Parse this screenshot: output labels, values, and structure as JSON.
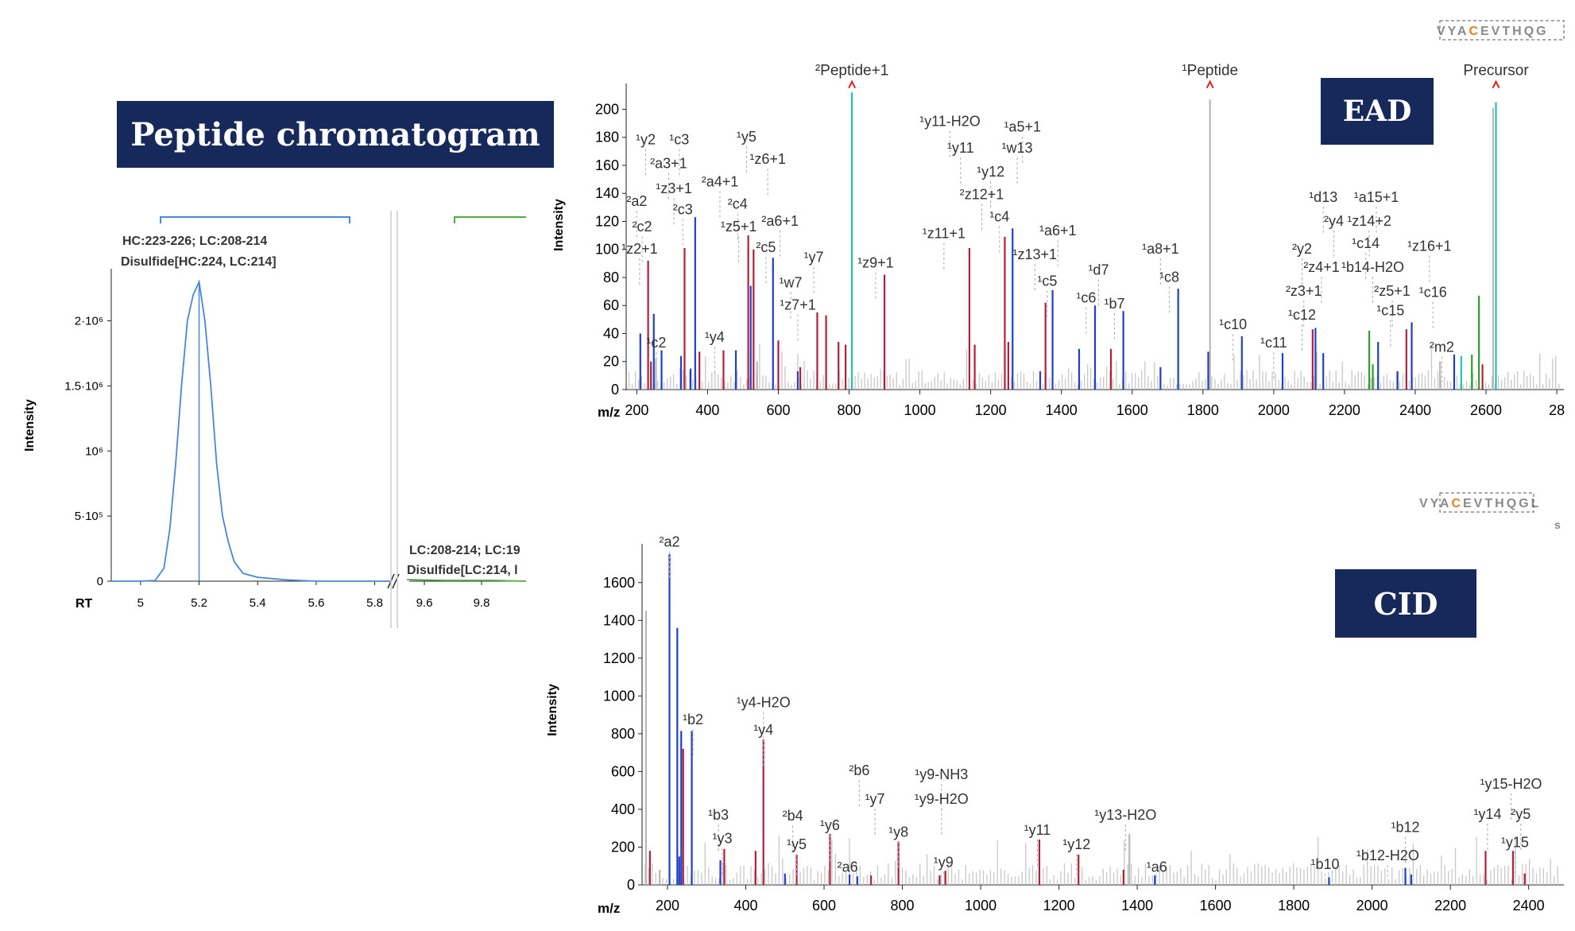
{
  "chromatogram": {
    "header": "Peptide chromatogram",
    "ylabel": "Intensity",
    "xlabel": "RT",
    "yticks": [
      "0",
      "5·10⁵",
      "10⁶",
      "1.5·10⁶",
      "2·10⁶"
    ],
    "xticks_left": [
      "5",
      "5.2",
      "5.4",
      "5.6",
      "5.8"
    ],
    "xticks_right": [
      "9.6",
      "9.8"
    ],
    "peak1_label_line1": "HC:223-226; LC:208-214",
    "peak1_label_line2": "Disulfide[HC:224, LC:214]",
    "peak2_label_line1": "LC:208-214; LC:19",
    "peak2_label_line2": "Disulfide[LC:214, l",
    "line_color": "#4a86d8",
    "line2_color": "#4caf3c"
  },
  "ead": {
    "badge": "EAD",
    "sequence": "VYACEVTHQG",
    "precursor_label": "Precursor",
    "ylabel": "Intensity",
    "xlabel": "m/z",
    "yticks": [
      "0",
      "20",
      "40",
      "60",
      "80",
      "100",
      "120",
      "140",
      "160",
      "180",
      "200"
    ],
    "xticks": [
      "200",
      "400",
      "600",
      "800",
      "1000",
      "1200",
      "1400",
      "1600",
      "1800",
      "2000",
      "2200",
      "2400",
      "2600",
      "28"
    ]
  },
  "cid": {
    "badge": "CID",
    "sequence": "VYACEVTHQGL",
    "ylabel": "Intensity",
    "xlabel": "m/z",
    "yticks": [
      "0",
      "200",
      "400",
      "600",
      "800",
      "1000",
      "1200",
      "1400",
      "1600"
    ],
    "xticks": [
      "200",
      "400",
      "600",
      "800",
      "1000",
      "1200",
      "1400",
      "1600",
      "1800",
      "2000",
      "2200",
      "2400"
    ]
  },
  "colors": {
    "header_bg": "#17285a",
    "red_ion": "#b0203a",
    "blue_ion": "#1f3fc8",
    "grey_peak": "#b8b8b8",
    "teal_peak": "#27c0b8",
    "green_peak": "#2f9e2f",
    "highlight_C": "#e67e22"
  },
  "chart_data": [
    {
      "type": "line",
      "name": "Peptide chromatogram",
      "xlabel": "RT",
      "ylabel": "Intensity",
      "x": [
        4.9,
        5.0,
        5.05,
        5.08,
        5.1,
        5.12,
        5.14,
        5.16,
        5.18,
        5.2,
        5.22,
        5.24,
        5.26,
        5.28,
        5.3,
        5.32,
        5.35,
        5.4,
        5.5,
        5.6,
        5.85
      ],
      "y": [
        0,
        0,
        5000,
        100000,
        400000,
        900000,
        1500000,
        2000000,
        2200000,
        2300000,
        2000000,
        1500000,
        900000,
        500000,
        300000,
        150000,
        60000,
        30000,
        10000,
        0,
        0
      ],
      "ylim": [
        0,
        2400000
      ],
      "peak_rt": 5.2
    },
    {
      "type": "bar",
      "name": "EAD spectrum",
      "xlabel": "m/z",
      "ylabel": "Intensity",
      "xlim": [
        170,
        2820
      ],
      "ylim": [
        0,
        215
      ],
      "peaks": [
        {
          "mz": 210,
          "i": 40,
          "c": "blue"
        },
        {
          "mz": 232,
          "i": 92,
          "c": "red"
        },
        {
          "mz": 240,
          "i": 20,
          "c": "red"
        },
        {
          "mz": 248,
          "i": 54,
          "c": "blue"
        },
        {
          "mz": 254,
          "i": 22,
          "c": "grey"
        },
        {
          "mz": 270,
          "i": 28,
          "c": "blue"
        },
        {
          "mz": 325,
          "i": 24,
          "c": "blue"
        },
        {
          "mz": 335,
          "i": 101,
          "c": "red"
        },
        {
          "mz": 352,
          "i": 15,
          "c": "blue"
        },
        {
          "mz": 365,
          "i": 123,
          "c": "blue"
        },
        {
          "mz": 377,
          "i": 27,
          "c": "red"
        },
        {
          "mz": 445,
          "i": 28,
          "c": "red"
        },
        {
          "mz": 480,
          "i": 28,
          "c": "blue"
        },
        {
          "mz": 515,
          "i": 110,
          "c": "red"
        },
        {
          "mz": 522,
          "i": 74,
          "c": "blue"
        },
        {
          "mz": 530,
          "i": 100,
          "c": "red"
        },
        {
          "mz": 540,
          "i": 20,
          "c": "grey"
        },
        {
          "mz": 585,
          "i": 94,
          "c": "blue"
        },
        {
          "mz": 600,
          "i": 35,
          "c": "red"
        },
        {
          "mz": 655,
          "i": 13,
          "c": "blue"
        },
        {
          "mz": 662,
          "i": 16,
          "c": "red"
        },
        {
          "mz": 710,
          "i": 55,
          "c": "red"
        },
        {
          "mz": 735,
          "i": 53,
          "c": "red"
        },
        {
          "mz": 770,
          "i": 34,
          "c": "red"
        },
        {
          "mz": 790,
          "i": 32,
          "c": "red"
        },
        {
          "mz": 808,
          "i": 212,
          "c": "teal"
        },
        {
          "mz": 900,
          "i": 82,
          "c": "red"
        },
        {
          "mz": 1140,
          "i": 101,
          "c": "red"
        },
        {
          "mz": 1155,
          "i": 32,
          "c": "red"
        },
        {
          "mz": 1240,
          "i": 109,
          "c": "red"
        },
        {
          "mz": 1250,
          "i": 34,
          "c": "red"
        },
        {
          "mz": 1262,
          "i": 115,
          "c": "blue"
        },
        {
          "mz": 1340,
          "i": 13,
          "c": "blue"
        },
        {
          "mz": 1355,
          "i": 62,
          "c": "red"
        },
        {
          "mz": 1375,
          "i": 71,
          "c": "blue"
        },
        {
          "mz": 1450,
          "i": 29,
          "c": "blue"
        },
        {
          "mz": 1495,
          "i": 60,
          "c": "blue"
        },
        {
          "mz": 1540,
          "i": 29,
          "c": "red"
        },
        {
          "mz": 1575,
          "i": 56,
          "c": "blue"
        },
        {
          "mz": 1680,
          "i": 16,
          "c": "blue"
        },
        {
          "mz": 1730,
          "i": 72,
          "c": "blue"
        },
        {
          "mz": 1815,
          "i": 27,
          "c": "blue"
        },
        {
          "mz": 1820,
          "i": 207,
          "c": "grey"
        },
        {
          "mz": 1910,
          "i": 38,
          "c": "blue"
        },
        {
          "mz": 2025,
          "i": 26,
          "c": "blue"
        },
        {
          "mz": 2110,
          "i": 43,
          "c": "red"
        },
        {
          "mz": 2118,
          "i": 44,
          "c": "blue"
        },
        {
          "mz": 2140,
          "i": 26,
          "c": "blue"
        },
        {
          "mz": 2270,
          "i": 42,
          "c": "green"
        },
        {
          "mz": 2280,
          "i": 18,
          "c": "green"
        },
        {
          "mz": 2295,
          "i": 34,
          "c": "blue"
        },
        {
          "mz": 2350,
          "i": 13,
          "c": "blue"
        },
        {
          "mz": 2375,
          "i": 43,
          "c": "red"
        },
        {
          "mz": 2390,
          "i": 48,
          "c": "blue"
        },
        {
          "mz": 2470,
          "i": 20,
          "c": "grey"
        },
        {
          "mz": 2510,
          "i": 25,
          "c": "blue"
        },
        {
          "mz": 2530,
          "i": 24,
          "c": "teal"
        },
        {
          "mz": 2560,
          "i": 25,
          "c": "green"
        },
        {
          "mz": 2580,
          "i": 67,
          "c": "green"
        },
        {
          "mz": 2590,
          "i": 18,
          "c": "red"
        },
        {
          "mz": 2620,
          "i": 201,
          "c": "grey"
        },
        {
          "mz": 2628,
          "i": 205,
          "c": "teal"
        }
      ],
      "labels": [
        {
          "t": "²Peptide+1",
          "mz": 808,
          "i": 222,
          "arrow": true
        },
        {
          "t": "¹Peptide",
          "mz": 1820,
          "i": 222,
          "arrow": true
        },
        {
          "t": "Precursor",
          "mz": 2628,
          "i": 222,
          "arrow": true
        },
        {
          "t": "¹y2",
          "mz": 225,
          "i": 175
        },
        {
          "t": "¹c3",
          "mz": 320,
          "i": 175
        },
        {
          "t": "²a3+1",
          "mz": 290,
          "i": 158
        },
        {
          "t": "¹z3+1",
          "mz": 305,
          "i": 140
        },
        {
          "t": "²c3",
          "mz": 330,
          "i": 125
        },
        {
          "t": "²a2",
          "mz": 200,
          "i": 131
        },
        {
          "t": "²c2",
          "mz": 215,
          "i": 113
        },
        {
          "t": "¹z2+1",
          "mz": 208,
          "i": 97
        },
        {
          "t": "¹c2",
          "mz": 255,
          "i": 30
        },
        {
          "t": "¹y5",
          "mz": 510,
          "i": 177
        },
        {
          "t": "¹z6+1",
          "mz": 570,
          "i": 161
        },
        {
          "t": "²a4+1",
          "mz": 435,
          "i": 145
        },
        {
          "t": "²c4",
          "mz": 485,
          "i": 129
        },
        {
          "t": "¹z5+1",
          "mz": 488,
          "i": 113
        },
        {
          "t": "²a6+1",
          "mz": 605,
          "i": 117
        },
        {
          "t": "²c5",
          "mz": 565,
          "i": 98
        },
        {
          "t": "¹y7",
          "mz": 700,
          "i": 91
        },
        {
          "t": "¹w7",
          "mz": 635,
          "i": 73
        },
        {
          "t": "¹z7+1",
          "mz": 655,
          "i": 57
        },
        {
          "t": "¹y4",
          "mz": 420,
          "i": 34
        },
        {
          "t": "¹z9+1",
          "mz": 875,
          "i": 87
        },
        {
          "t": "¹y11-H2O",
          "mz": 1085,
          "i": 188
        },
        {
          "t": "¹a5+1",
          "mz": 1290,
          "i": 184
        },
        {
          "t": "¹y11",
          "mz": 1115,
          "i": 169
        },
        {
          "t": "¹w13",
          "mz": 1275,
          "i": 169
        },
        {
          "t": "¹y12",
          "mz": 1200,
          "i": 152
        },
        {
          "t": "²z12+1",
          "mz": 1175,
          "i": 136
        },
        {
          "t": "¹c4",
          "mz": 1225,
          "i": 120
        },
        {
          "t": "¹z11+1",
          "mz": 1068,
          "i": 108
        },
        {
          "t": "¹a6+1",
          "mz": 1390,
          "i": 110
        },
        {
          "t": "¹z13+1",
          "mz": 1325,
          "i": 93
        },
        {
          "t": "¹c5",
          "mz": 1360,
          "i": 74
        },
        {
          "t": "¹d7",
          "mz": 1505,
          "i": 82
        },
        {
          "t": "¹c6",
          "mz": 1470,
          "i": 62
        },
        {
          "t": "¹b7",
          "mz": 1550,
          "i": 58
        },
        {
          "t": "¹a8+1",
          "mz": 1680,
          "i": 97
        },
        {
          "t": "¹c8",
          "mz": 1705,
          "i": 77
        },
        {
          "t": "¹c10",
          "mz": 1885,
          "i": 43
        },
        {
          "t": "¹c11",
          "mz": 2000,
          "i": 30
        },
        {
          "t": "¹d13",
          "mz": 2140,
          "i": 134
        },
        {
          "t": "¹a15+1",
          "mz": 2290,
          "i": 134
        },
        {
          "t": "²y4",
          "mz": 2170,
          "i": 117
        },
        {
          "t": "¹z14+2",
          "mz": 2270,
          "i": 117
        },
        {
          "t": "²y2",
          "mz": 2080,
          "i": 97
        },
        {
          "t": "¹c14",
          "mz": 2260,
          "i": 101
        },
        {
          "t": "¹z16+1",
          "mz": 2440,
          "i": 99
        },
        {
          "t": "²z4+1",
          "mz": 2135,
          "i": 84
        },
        {
          "t": "¹b14-H2O",
          "mz": 2280,
          "i": 84
        },
        {
          "t": "²z3+1",
          "mz": 2085,
          "i": 67
        },
        {
          "t": "²z5+1",
          "mz": 2335,
          "i": 67
        },
        {
          "t": "¹c16",
          "mz": 2450,
          "i": 66
        },
        {
          "t": "¹c12",
          "mz": 2080,
          "i": 50
        },
        {
          "t": "¹c15",
          "mz": 2330,
          "i": 53
        },
        {
          "t": "²m2",
          "mz": 2475,
          "i": 27
        }
      ]
    },
    {
      "type": "bar",
      "name": "CID spectrum",
      "xlabel": "m/z",
      "ylabel": "Intensity",
      "xlim": [
        135,
        2490
      ],
      "ylim": [
        0,
        1780
      ],
      "peaks": [
        {
          "mz": 145,
          "i": 1450,
          "c": "grey"
        },
        {
          "mz": 155,
          "i": 180,
          "c": "red"
        },
        {
          "mz": 180,
          "i": 80,
          "c": "grey"
        },
        {
          "mz": 205,
          "i": 1750,
          "c": "blue"
        },
        {
          "mz": 225,
          "i": 1360,
          "c": "blue"
        },
        {
          "mz": 230,
          "i": 150,
          "c": "blue"
        },
        {
          "mz": 235,
          "i": 815,
          "c": "blue"
        },
        {
          "mz": 240,
          "i": 720,
          "c": "red"
        },
        {
          "mz": 262,
          "i": 815,
          "c": "blue"
        },
        {
          "mz": 335,
          "i": 130,
          "c": "blue"
        },
        {
          "mz": 345,
          "i": 190,
          "c": "red"
        },
        {
          "mz": 425,
          "i": 180,
          "c": "red"
        },
        {
          "mz": 445,
          "i": 770,
          "c": "red"
        },
        {
          "mz": 500,
          "i": 60,
          "c": "blue"
        },
        {
          "mz": 530,
          "i": 160,
          "c": "red"
        },
        {
          "mz": 615,
          "i": 270,
          "c": "red"
        },
        {
          "mz": 665,
          "i": 55,
          "c": "blue"
        },
        {
          "mz": 685,
          "i": 45,
          "c": "blue"
        },
        {
          "mz": 720,
          "i": 50,
          "c": "red"
        },
        {
          "mz": 790,
          "i": 230,
          "c": "red"
        },
        {
          "mz": 895,
          "i": 50,
          "c": "red"
        },
        {
          "mz": 910,
          "i": 75,
          "c": "red"
        },
        {
          "mz": 1150,
          "i": 240,
          "c": "red"
        },
        {
          "mz": 1250,
          "i": 160,
          "c": "red"
        },
        {
          "mz": 1365,
          "i": 80,
          "c": "red"
        },
        {
          "mz": 1380,
          "i": 270,
          "c": "grey"
        },
        {
          "mz": 1445,
          "i": 50,
          "c": "blue"
        },
        {
          "mz": 1890,
          "i": 40,
          "c": "blue"
        },
        {
          "mz": 2085,
          "i": 90,
          "c": "blue"
        },
        {
          "mz": 2100,
          "i": 55,
          "c": "blue"
        },
        {
          "mz": 2290,
          "i": 180,
          "c": "red"
        },
        {
          "mz": 2360,
          "i": 180,
          "c": "red"
        },
        {
          "mz": 2390,
          "i": 60,
          "c": "red"
        }
      ],
      "labels": [
        {
          "t": "²a2",
          "mz": 205,
          "i": 1790
        },
        {
          "t": "¹b2",
          "mz": 265,
          "i": 850
        },
        {
          "t": "¹y4-H2O",
          "mz": 445,
          "i": 940
        },
        {
          "t": "¹y4",
          "mz": 445,
          "i": 795
        },
        {
          "t": "¹b3",
          "mz": 330,
          "i": 345
        },
        {
          "t": "¹y3",
          "mz": 340,
          "i": 220
        },
        {
          "t": "²b4",
          "mz": 520,
          "i": 340
        },
        {
          "t": "¹y5",
          "mz": 530,
          "i": 190
        },
        {
          "t": "¹y6",
          "mz": 615,
          "i": 290
        },
        {
          "t": "²a6",
          "mz": 660,
          "i": 70
        },
        {
          "t": "²b6",
          "mz": 690,
          "i": 580
        },
        {
          "t": "¹y7",
          "mz": 730,
          "i": 430
        },
        {
          "t": "¹y8",
          "mz": 790,
          "i": 255
        },
        {
          "t": "¹y9-NH3",
          "mz": 900,
          "i": 560
        },
        {
          "t": "¹y9-H2O",
          "mz": 900,
          "i": 430
        },
        {
          "t": "¹y9",
          "mz": 905,
          "i": 95
        },
        {
          "t": "¹y11",
          "mz": 1145,
          "i": 265
        },
        {
          "t": "¹y12",
          "mz": 1245,
          "i": 190
        },
        {
          "t": "¹y13-H2O",
          "mz": 1370,
          "i": 345
        },
        {
          "t": "¹a6",
          "mz": 1450,
          "i": 70
        },
        {
          "t": "¹b10",
          "mz": 1880,
          "i": 85
        },
        {
          "t": "¹b12",
          "mz": 2085,
          "i": 280
        },
        {
          "t": "¹b12-H2O",
          "mz": 2040,
          "i": 130
        },
        {
          "t": "¹y15-H2O",
          "mz": 2355,
          "i": 510
        },
        {
          "t": "¹y14",
          "mz": 2295,
          "i": 350
        },
        {
          "t": "²y5",
          "mz": 2380,
          "i": 350
        },
        {
          "t": "¹y15",
          "mz": 2365,
          "i": 200
        }
      ]
    }
  ]
}
